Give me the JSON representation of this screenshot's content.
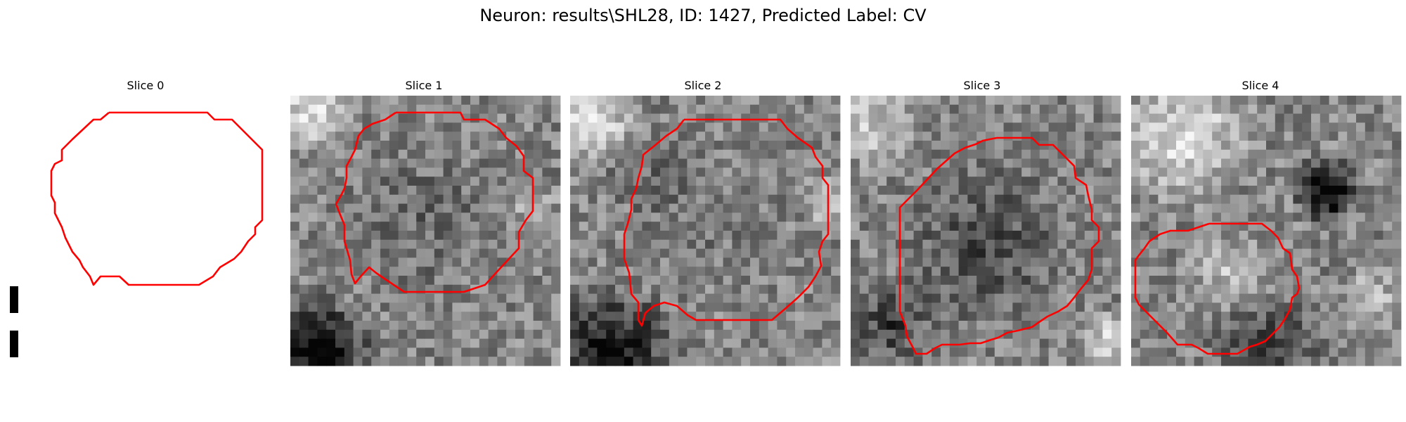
{
  "figure": {
    "title": "Neuron: results\\SHL28, ID: 1427, Predicted Label: CV",
    "contour_color": "#ff0000"
  },
  "panels": [
    {
      "title": "Slice 0",
      "content": "blank",
      "seed": 0
    },
    {
      "title": "Slice 1",
      "content": "grayscale-noise",
      "seed": 11
    },
    {
      "title": "Slice 2",
      "content": "grayscale-noise",
      "seed": 23
    },
    {
      "title": "Slice 3",
      "content": "grayscale-noise",
      "seed": 37
    },
    {
      "title": "Slice 4",
      "content": "grayscale-noise",
      "seed": 53
    }
  ]
}
